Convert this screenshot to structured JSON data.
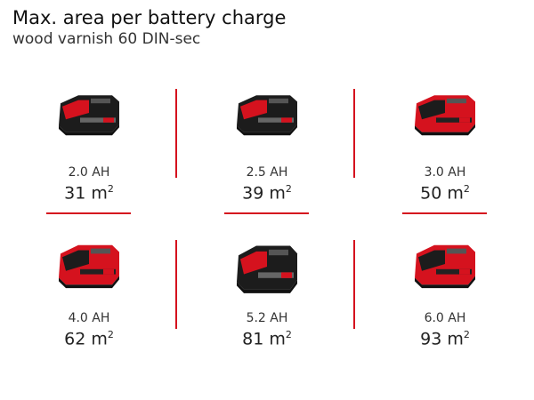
{
  "title": "Max. area per battery charge",
  "subtitle": "wood varnish 60 DIN-sec",
  "accent_color": "#d5121e",
  "unit_suffix": "2",
  "batteries": [
    {
      "capacity": "2.0 AH",
      "area": "31 m",
      "style": "black"
    },
    {
      "capacity": "2.5 AH",
      "area": "39 m",
      "style": "black"
    },
    {
      "capacity": "3.0 AH",
      "area": "50 m",
      "style": "red"
    },
    {
      "capacity": "4.0 AH",
      "area": "62 m",
      "style": "red"
    },
    {
      "capacity": "5.2 AH",
      "area": "81 m",
      "style": "black-large"
    },
    {
      "capacity": "6.0 AH",
      "area": "93 m",
      "style": "red"
    }
  ]
}
